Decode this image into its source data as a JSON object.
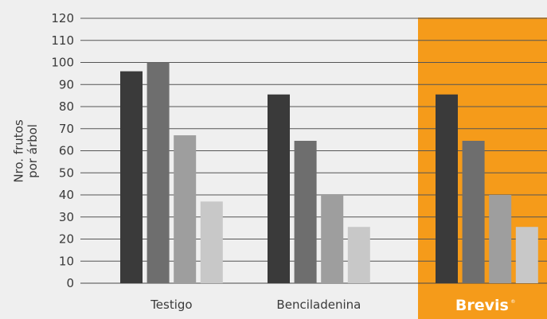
{
  "chart_data": {
    "type": "bar",
    "title": "",
    "xlabel": "",
    "ylabel": "Nro. frutos por árbol",
    "ylabel_lines": [
      "Nro. frutos",
      "por árbol"
    ],
    "ylim": [
      0,
      120
    ],
    "yticks": [
      0,
      10,
      20,
      30,
      40,
      50,
      60,
      70,
      80,
      90,
      100,
      110,
      120
    ],
    "grid": true,
    "categories": [
      "Testigo",
      "Benciladenina",
      "Brevis"
    ],
    "highlight_category_index": 2,
    "highlight_color": "#f59b1a",
    "brand_label": "Brevis",
    "brand_mark": "®",
    "series": [
      {
        "color": "#3a3a3a",
        "values": [
          96,
          85.5,
          85.5
        ]
      },
      {
        "color": "#6e6e6e",
        "values": [
          100,
          64.5,
          64.5
        ]
      },
      {
        "color": "#9e9e9e",
        "values": [
          67,
          40,
          40
        ]
      },
      {
        "color": "#c8c8c8",
        "values": [
          37,
          25.5,
          25.5
        ]
      }
    ]
  }
}
